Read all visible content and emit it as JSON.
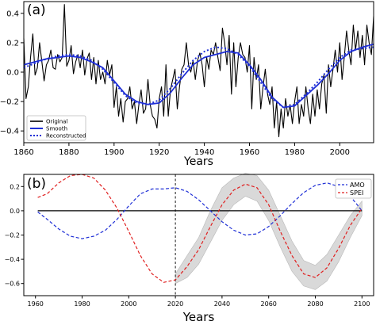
{
  "chart_data": [
    {
      "type": "line",
      "panel_label": "(a)",
      "title": "",
      "xlabel": "Years",
      "ylabel": "",
      "xlim": [
        1860,
        2015
      ],
      "ylim": [
        -0.48,
        0.48
      ],
      "xticks": [
        1860,
        1880,
        1900,
        1920,
        1940,
        1960,
        1980,
        2000
      ],
      "yticks": [
        -0.4,
        -0.2,
        0.0,
        0.2,
        0.4
      ],
      "ytick_labels": [
        "−0.4",
        "−0.2",
        "0.0",
        "0.2",
        "0.4"
      ],
      "grid": false,
      "legend_position": "bottom-left",
      "colors": {
        "Original": "#000000",
        "Smooth": "#1f2fd6",
        "Reconstructed": "#1f2fd6"
      },
      "series": [
        {
          "name": "Original",
          "style": "solid",
          "x": [
            1860,
            1861,
            1862,
            1863,
            1864,
            1865,
            1866,
            1867,
            1868,
            1869,
            1870,
            1871,
            1872,
            1873,
            1874,
            1875,
            1876,
            1877,
            1878,
            1879,
            1880,
            1881,
            1882,
            1883,
            1884,
            1885,
            1886,
            1887,
            1888,
            1889,
            1890,
            1891,
            1892,
            1893,
            1894,
            1895,
            1896,
            1897,
            1898,
            1899,
            1900,
            1901,
            1902,
            1903,
            1904,
            1905,
            1906,
            1907,
            1908,
            1909,
            1910,
            1911,
            1912,
            1913,
            1914,
            1915,
            1916,
            1917,
            1918,
            1919,
            1920,
            1921,
            1922,
            1923,
            1924,
            1925,
            1926,
            1927,
            1928,
            1929,
            1930,
            1931,
            1932,
            1933,
            1934,
            1935,
            1936,
            1937,
            1938,
            1939,
            1940,
            1941,
            1942,
            1943,
            1944,
            1945,
            1946,
            1947,
            1948,
            1949,
            1950,
            1951,
            1952,
            1953,
            1954,
            1955,
            1956,
            1957,
            1958,
            1959,
            1960,
            1961,
            1962,
            1963,
            1964,
            1965,
            1966,
            1967,
            1968,
            1969,
            1970,
            1971,
            1972,
            1973,
            1974,
            1975,
            1976,
            1977,
            1978,
            1979,
            1980,
            1981,
            1982,
            1983,
            1984,
            1985,
            1986,
            1987,
            1988,
            1989,
            1990,
            1991,
            1992,
            1993,
            1994,
            1995,
            1996,
            1997,
            1998,
            1999,
            2000,
            2001,
            2002,
            2003,
            2004,
            2005,
            2006,
            2007,
            2008,
            2009,
            2010,
            2011,
            2012,
            2013,
            2014,
            2015
          ],
          "values": [
            0.23,
            -0.18,
            -0.1,
            0.1,
            0.26,
            -0.02,
            0.03,
            0.2,
            0.07,
            -0.06,
            0.05,
            0.08,
            0.15,
            0.03,
            0.02,
            0.12,
            0.07,
            0.1,
            0.46,
            0.04,
            0.08,
            0.18,
            -0.01,
            0.07,
            0.12,
            0.03,
            0.15,
            -0.02,
            0.09,
            0.13,
            -0.05,
            0.1,
            -0.08,
            0.08,
            -0.05,
            0.0,
            -0.08,
            0.08,
            -0.02,
            0.05,
            -0.24,
            -0.1,
            -0.3,
            -0.18,
            -0.34,
            -0.2,
            -0.18,
            -0.1,
            -0.25,
            -0.2,
            -0.35,
            -0.22,
            -0.12,
            -0.28,
            -0.25,
            -0.05,
            -0.22,
            -0.3,
            -0.32,
            -0.38,
            -0.18,
            -0.1,
            -0.3,
            0.05,
            -0.3,
            -0.12,
            -0.05,
            0.02,
            -0.25,
            -0.1,
            0.02,
            0.05,
            0.2,
            0.05,
            0.0,
            0.08,
            -0.05,
            0.08,
            0.13,
            0.05,
            -0.1,
            0.1,
            0.02,
            0.15,
            0.12,
            0.2,
            0.1,
            0.01,
            0.3,
            0.2,
            0.05,
            0.25,
            -0.15,
            0.2,
            -0.1,
            0.1,
            0.2,
            0.12,
            0.1,
            0.0,
            0.18,
            -0.25,
            0.1,
            -0.05,
            0.05,
            -0.25,
            -0.1,
            0.02,
            -0.15,
            -0.22,
            -0.1,
            -0.38,
            -0.2,
            -0.44,
            -0.25,
            -0.38,
            -0.18,
            -0.3,
            -0.22,
            -0.35,
            -0.2,
            -0.1,
            -0.35,
            -0.22,
            -0.3,
            -0.1,
            -0.25,
            -0.35,
            -0.15,
            -0.3,
            -0.12,
            -0.25,
            -0.08,
            -0.02,
            -0.28,
            0.05,
            -0.1,
            0.02,
            0.15,
            0.0,
            0.2,
            -0.05,
            0.1,
            0.28,
            0.15,
            0.05,
            0.32,
            0.15,
            0.28,
            0.1,
            0.25,
            0.05,
            0.32,
            0.2,
            0.12,
            0.38
          ]
        },
        {
          "name": "Smooth",
          "style": "solid",
          "x": [
            1860,
            1865,
            1870,
            1875,
            1880,
            1885,
            1890,
            1895,
            1900,
            1905,
            1910,
            1915,
            1920,
            1925,
            1930,
            1935,
            1940,
            1945,
            1950,
            1955,
            1960,
            1965,
            1970,
            1975,
            1980,
            1985,
            1990,
            1995,
            2000,
            2005,
            2010,
            2015
          ],
          "values": [
            0.05,
            0.07,
            0.09,
            0.1,
            0.11,
            0.1,
            0.07,
            0.03,
            -0.06,
            -0.15,
            -0.2,
            -0.22,
            -0.21,
            -0.14,
            -0.04,
            0.05,
            0.1,
            0.12,
            0.14,
            0.13,
            0.05,
            -0.05,
            -0.17,
            -0.24,
            -0.23,
            -0.16,
            -0.09,
            -0.01,
            0.08,
            0.14,
            0.17,
            0.19
          ]
        },
        {
          "name": "Reconstructed",
          "style": "dotted",
          "x": [
            1860,
            1865,
            1870,
            1875,
            1880,
            1885,
            1890,
            1895,
            1900,
            1905,
            1910,
            1915,
            1920,
            1925,
            1930,
            1935,
            1940,
            1945,
            1950,
            1955,
            1960,
            1965,
            1970,
            1975,
            1980,
            1985,
            1990,
            1995,
            2000,
            2005,
            2010,
            2015
          ],
          "values": [
            0.03,
            0.06,
            0.09,
            0.11,
            0.12,
            0.11,
            0.08,
            0.02,
            -0.07,
            -0.16,
            -0.21,
            -0.22,
            -0.19,
            -0.11,
            -0.01,
            0.08,
            0.14,
            0.17,
            0.16,
            0.12,
            0.04,
            -0.07,
            -0.18,
            -0.24,
            -0.22,
            -0.15,
            -0.07,
            0.02,
            0.1,
            0.15,
            0.16,
            0.17
          ]
        }
      ]
    },
    {
      "type": "line",
      "panel_label": "(b)",
      "title": "",
      "xlabel": "Years",
      "ylabel": "",
      "xlim": [
        1955,
        2105
      ],
      "ylim": [
        -0.7,
        0.3
      ],
      "xticks": [
        1960,
        1980,
        2000,
        2020,
        2040,
        2060,
        2080,
        2100
      ],
      "yticks": [
        -0.6,
        -0.4,
        -0.2,
        0.0,
        0.2
      ],
      "ytick_labels": [
        "−0.6",
        "−0.4",
        "−0.2",
        "0.0",
        "0.2"
      ],
      "vline_x": 2020,
      "hline_y": 0,
      "grid": false,
      "legend_position": "top-right",
      "colors": {
        "AMO": "#1f2fd6",
        "SPEI": "#e02020",
        "zero_line": "#000000",
        "band": "#d9d9d9"
      },
      "series": [
        {
          "name": "AMO",
          "style": "dashed",
          "x": [
            1961,
            1965,
            1970,
            1975,
            1980,
            1985,
            1990,
            1995,
            2000,
            2005,
            2010,
            2015,
            2020,
            2025,
            2030,
            2035,
            2040,
            2045,
            2050,
            2055,
            2060,
            2065,
            2070,
            2075,
            2080,
            2085,
            2090,
            2095,
            2100
          ],
          "values": [
            -0.01,
            -0.07,
            -0.15,
            -0.21,
            -0.23,
            -0.21,
            -0.16,
            -0.07,
            0.04,
            0.14,
            0.18,
            0.18,
            0.19,
            0.16,
            0.09,
            0.0,
            -0.09,
            -0.16,
            -0.2,
            -0.19,
            -0.13,
            -0.04,
            0.06,
            0.15,
            0.21,
            0.23,
            0.2,
            0.12,
            0.0
          ]
        },
        {
          "name": "SPEI",
          "style": "dashed",
          "x": [
            1961,
            1965,
            1970,
            1975,
            1980,
            1985,
            1990,
            1995,
            2000,
            2005,
            2010,
            2015,
            2020,
            2025,
            2030,
            2035,
            2040,
            2045,
            2050,
            2055,
            2060,
            2065,
            2070,
            2075,
            2080,
            2085,
            2090,
            2095,
            2100
          ],
          "values": [
            0.11,
            0.14,
            0.23,
            0.29,
            0.3,
            0.27,
            0.17,
            0.02,
            -0.17,
            -0.37,
            -0.52,
            -0.59,
            -0.57,
            -0.46,
            -0.32,
            -0.13,
            0.05,
            0.17,
            0.22,
            0.19,
            0.05,
            -0.17,
            -0.37,
            -0.52,
            -0.55,
            -0.47,
            -0.31,
            -0.12,
            0.02
          ]
        },
        {
          "name": "SPEI_band",
          "x": [
            2020,
            2025,
            2030,
            2035,
            2040,
            2045,
            2050,
            2055,
            2060,
            2065,
            2070,
            2075,
            2080,
            2085,
            2090,
            2095,
            2100
          ],
          "upper": [
            -0.52,
            -0.37,
            -0.22,
            0.0,
            0.19,
            0.27,
            0.31,
            0.29,
            0.17,
            -0.04,
            -0.25,
            -0.41,
            -0.45,
            -0.36,
            -0.2,
            -0.04,
            0.08
          ],
          "lower": [
            -0.6,
            -0.55,
            -0.44,
            -0.26,
            -0.08,
            0.05,
            0.12,
            0.08,
            -0.08,
            -0.3,
            -0.5,
            -0.62,
            -0.65,
            -0.58,
            -0.42,
            -0.22,
            -0.04
          ]
        }
      ]
    }
  ]
}
